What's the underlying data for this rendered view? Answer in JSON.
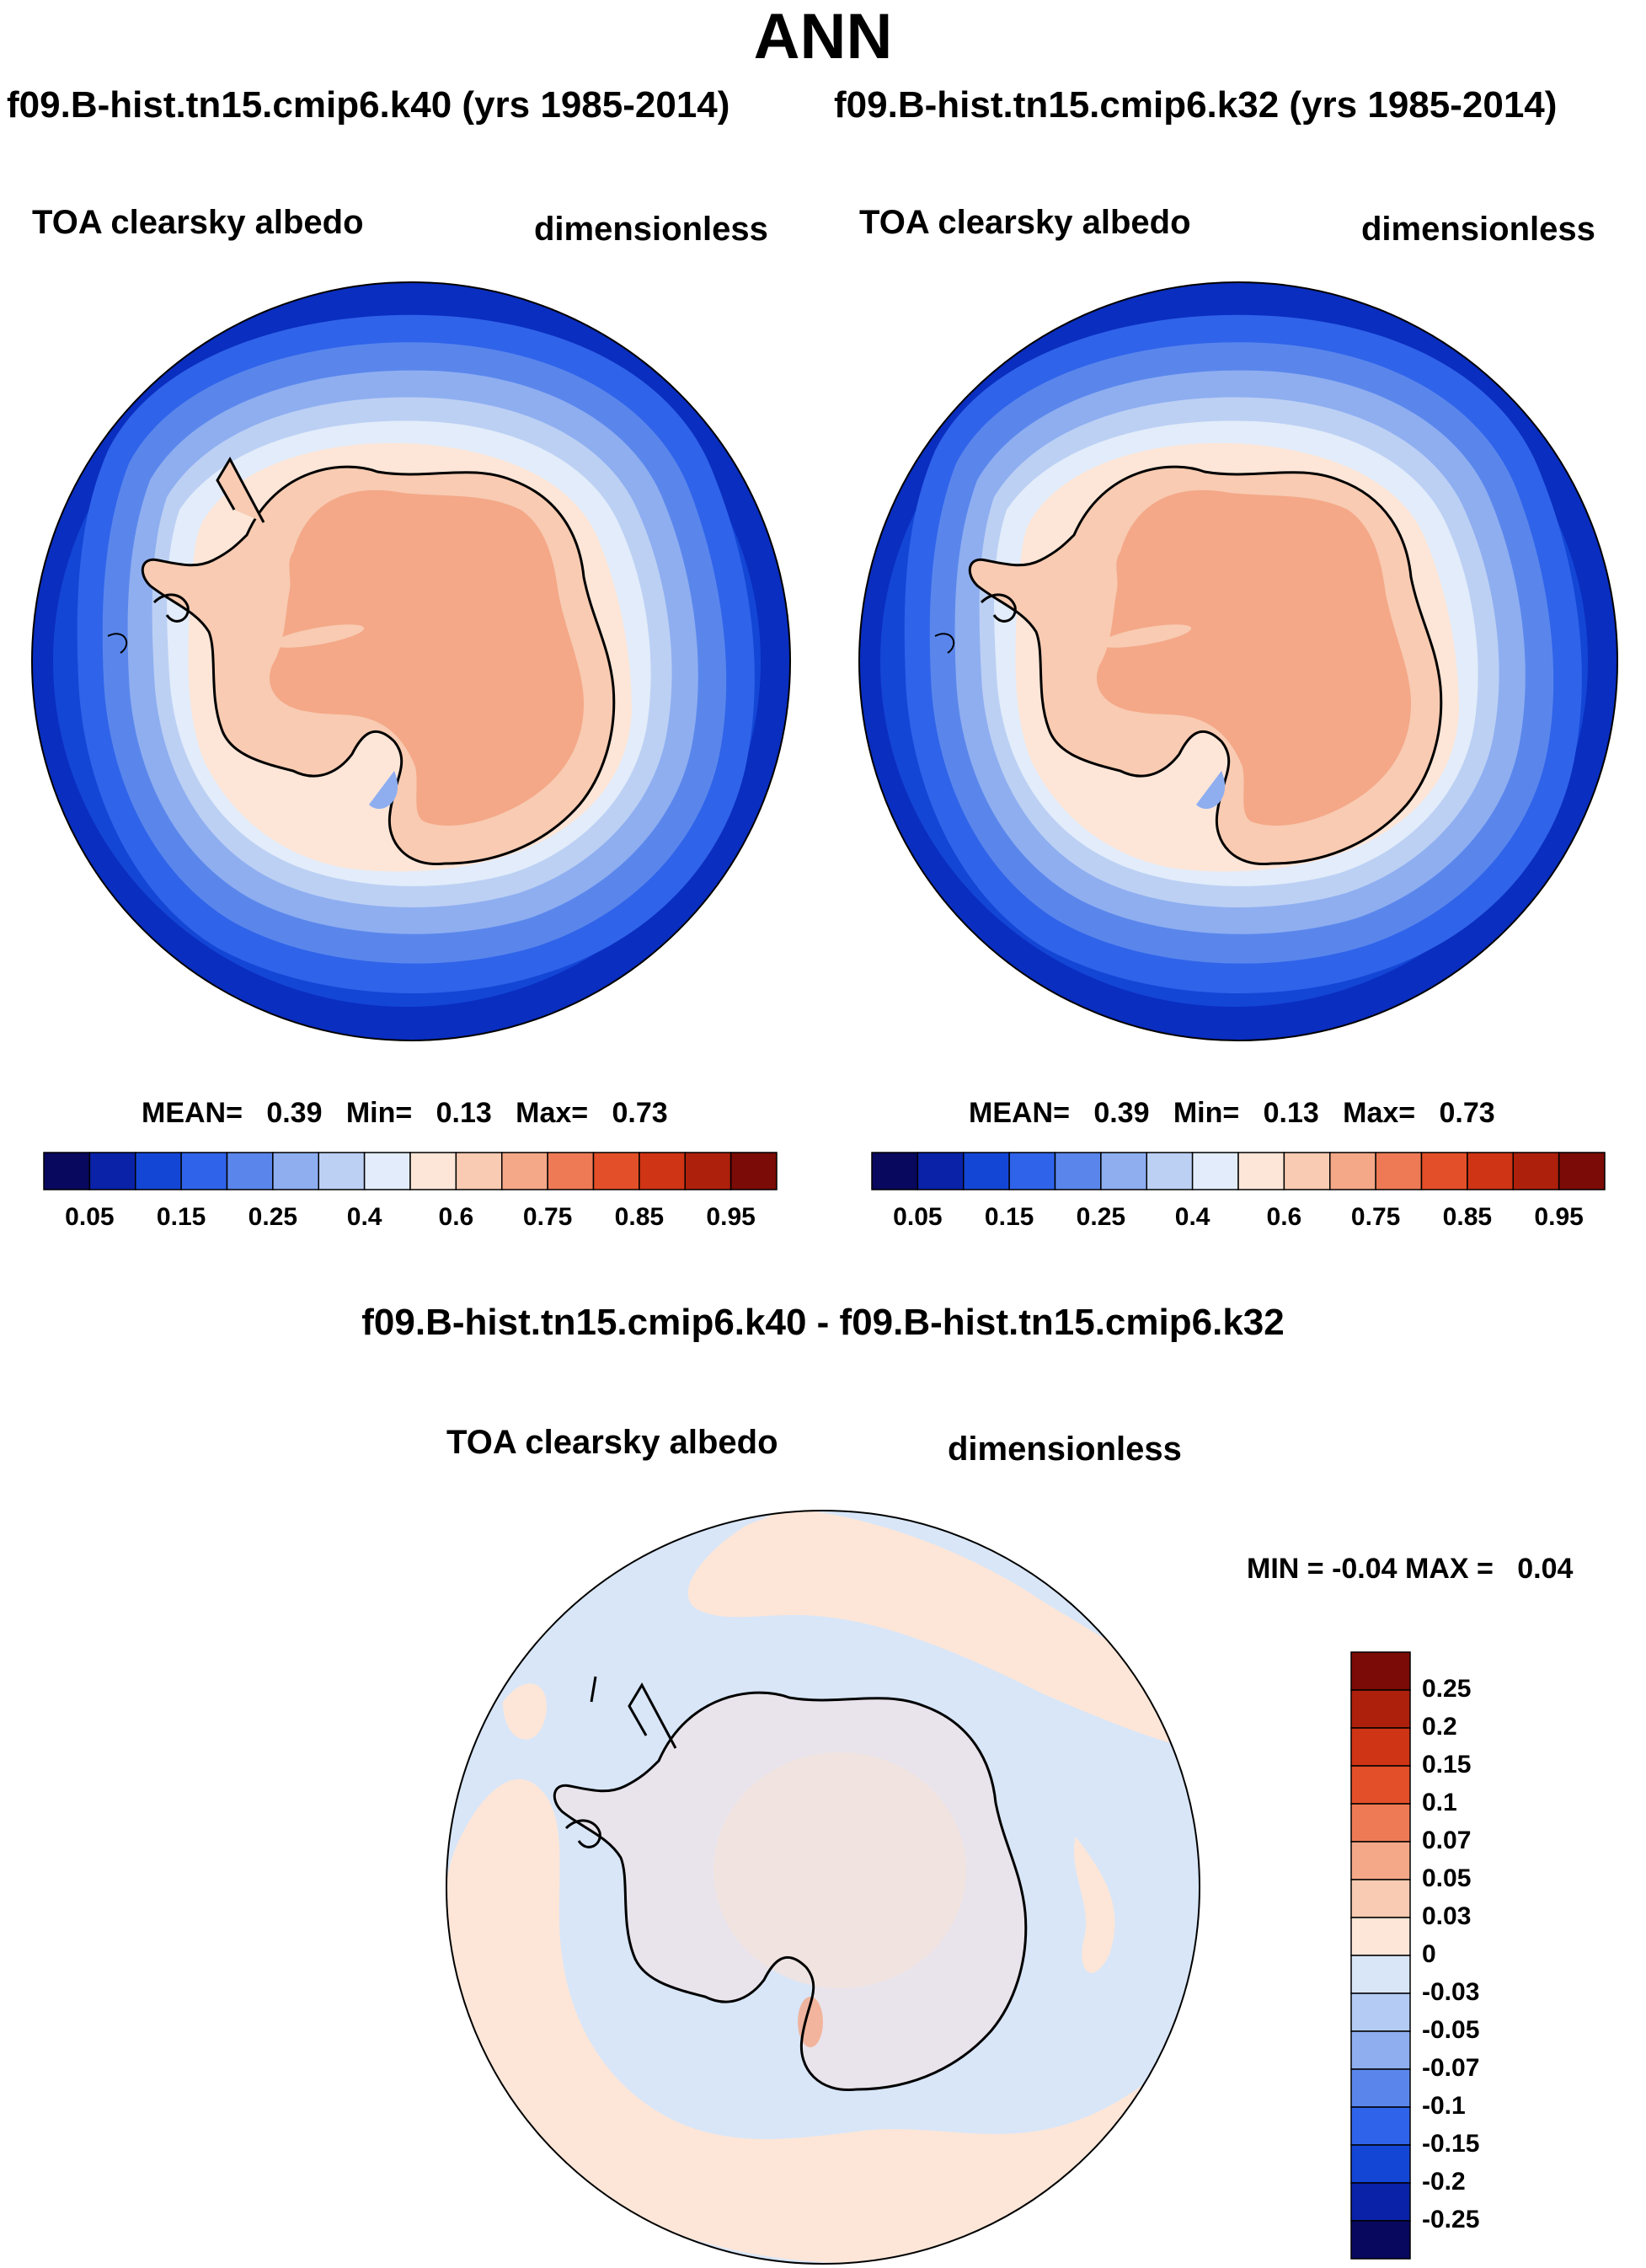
{
  "title": "ANN",
  "panels": [
    {
      "case_title": "f09.B-hist.tn15.cmip6.k40 (yrs 1985-2014)",
      "variable": "TOA clearsky albedo",
      "units": "dimensionless",
      "stats": {
        "mean_label": "MEAN=",
        "mean": "0.39",
        "min_label": "Min=",
        "min": "0.13",
        "max_label": "Max=",
        "max": "0.73"
      }
    },
    {
      "case_title": "f09.B-hist.tn15.cmip6.k32 (yrs 1985-2014)",
      "variable": "TOA clearsky albedo",
      "units": "dimensionless",
      "stats": {
        "mean_label": "MEAN=",
        "mean": "0.39",
        "min_label": "Min=",
        "min": "0.13",
        "max_label": "Max=",
        "max": "0.73"
      }
    }
  ],
  "abs_colorbar": {
    "labels": [
      "0.05",
      "0.15",
      "0.25",
      "0.4",
      "0.6",
      "0.75",
      "0.85",
      "0.95"
    ],
    "colors": [
      "#08085e",
      "#0a22a8",
      "#1446d6",
      "#2f63ea",
      "#5a86ec",
      "#8eaef0",
      "#bcd0f4",
      "#e2ecfa",
      "#fde6d8",
      "#f8cbb2",
      "#f4a888",
      "#ee7a55",
      "#e34f28",
      "#cf3414",
      "#ad200c",
      "#7b0b06"
    ]
  },
  "diff_panel": {
    "title": "f09.B-hist.tn15.cmip6.k40 - f09.B-hist.tn15.cmip6.k32",
    "variable": "TOA clearsky albedo",
    "units": "dimensionless",
    "stats": {
      "min_label": "MIN =",
      "min": "-0.04",
      "max_label": "MAX =",
      "max": "0.04"
    }
  },
  "diff_colorbar": {
    "labels": [
      "0.25",
      "0.2",
      "0.15",
      "0.1",
      "0.07",
      "0.05",
      "0.03",
      "0",
      "-0.03",
      "-0.05",
      "-0.07",
      "-0.1",
      "-0.15",
      "-0.2",
      "-0.25"
    ],
    "colors": [
      "#7b0b06",
      "#ad200c",
      "#cf3414",
      "#e34f28",
      "#ee7a55",
      "#f4a888",
      "#f8cbb2",
      "#fde6d8",
      "#d8e6f8",
      "#b4ccf4",
      "#8eaef0",
      "#5a86ec",
      "#2f63ea",
      "#1446d6",
      "#0a22a8",
      "#08085e"
    ]
  },
  "map_colors": {
    "ocean_far": "#1446d6",
    "ring1": "#2f63ea",
    "ring2": "#5a86ec",
    "ring3": "#8eaef0",
    "ring4": "#bcd0f4",
    "ring5": "#e2ecfa",
    "coast_zone": "#fde6d8",
    "ice_shelf": "#f8cbb2",
    "plateau": "#f4a888",
    "diff_neg": "#d8e6f8",
    "diff_pos": "#fde6d8",
    "diff_pos2": "#f8cbb2"
  }
}
